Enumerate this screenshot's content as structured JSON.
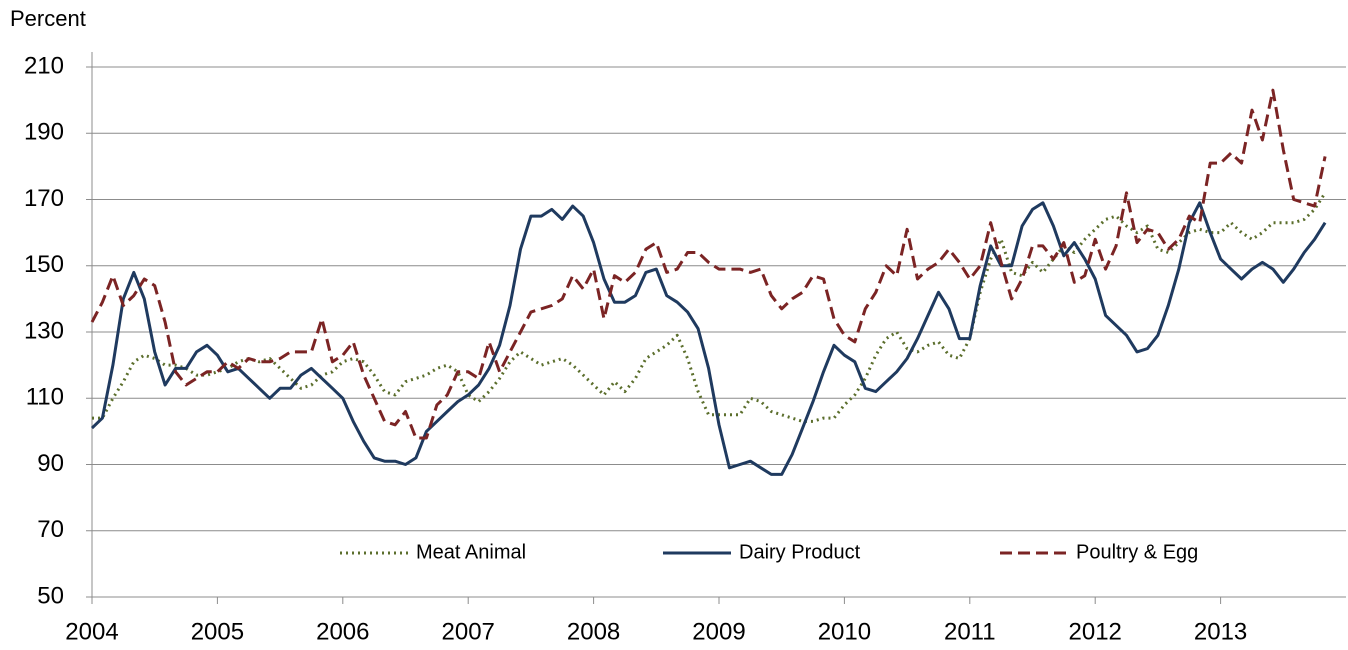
{
  "chart_data": {
    "type": "line",
    "y_label": "Percent",
    "x": [
      2004,
      2004.083,
      2004.167,
      2004.25,
      2004.333,
      2004.417,
      2004.5,
      2004.583,
      2004.667,
      2004.75,
      2004.833,
      2004.917,
      2005,
      2005.083,
      2005.167,
      2005.25,
      2005.333,
      2005.417,
      2005.5,
      2005.583,
      2005.667,
      2005.75,
      2005.833,
      2005.917,
      2006,
      2006.083,
      2006.167,
      2006.25,
      2006.333,
      2006.417,
      2006.5,
      2006.583,
      2006.667,
      2006.75,
      2006.833,
      2006.917,
      2007,
      2007.083,
      2007.167,
      2007.25,
      2007.333,
      2007.417,
      2007.5,
      2007.583,
      2007.667,
      2007.75,
      2007.833,
      2007.917,
      2008,
      2008.083,
      2008.167,
      2008.25,
      2008.333,
      2008.417,
      2008.5,
      2008.583,
      2008.667,
      2008.75,
      2008.833,
      2008.917,
      2009,
      2009.083,
      2009.167,
      2009.25,
      2009.333,
      2009.417,
      2009.5,
      2009.583,
      2009.667,
      2009.75,
      2009.833,
      2009.917,
      2010,
      2010.083,
      2010.167,
      2010.25,
      2010.333,
      2010.417,
      2010.5,
      2010.583,
      2010.667,
      2010.75,
      2010.833,
      2010.917,
      2011,
      2011.083,
      2011.167,
      2011.25,
      2011.333,
      2011.417,
      2011.5,
      2011.583,
      2011.667,
      2011.75,
      2011.833,
      2011.917,
      2012,
      2012.083,
      2012.167,
      2012.25,
      2012.333,
      2012.417,
      2012.5,
      2012.583,
      2012.667,
      2012.75,
      2012.833,
      2012.917,
      2013,
      2013.083,
      2013.167,
      2013.25,
      2013.333,
      2013.417,
      2013.5,
      2013.583,
      2013.667,
      2013.75,
      2013.833
    ],
    "series": [
      {
        "name": "Meat Animal",
        "color": "#5b6e2c",
        "style": "dotted",
        "values": [
          104,
          104,
          110,
          115,
          121,
          123,
          122,
          120,
          120,
          119,
          117,
          117,
          118,
          119,
          121,
          122,
          121,
          122,
          119,
          116,
          113,
          114,
          117,
          118,
          121,
          122,
          121,
          117,
          112,
          111,
          115,
          116,
          117,
          119,
          120,
          118,
          111,
          109,
          112,
          116,
          121,
          124,
          122,
          120,
          121,
          122,
          120,
          117,
          114,
          111,
          115,
          112,
          116,
          122,
          124,
          126,
          129,
          122,
          112,
          105,
          105,
          105,
          105,
          110,
          109,
          106,
          105,
          104,
          103,
          103,
          104,
          104,
          108,
          111,
          116,
          123,
          128,
          130,
          125,
          124,
          126,
          127,
          123,
          122,
          128,
          142,
          152,
          158,
          148,
          147,
          151,
          148,
          152,
          156,
          154,
          158,
          161,
          164,
          165,
          162,
          160,
          162,
          155,
          154,
          157,
          160,
          161,
          160,
          160,
          163,
          160,
          158,
          160,
          163,
          163,
          163,
          164,
          167,
          172
        ]
      },
      {
        "name": "Dairy Product",
        "color": "#1f3a5f",
        "style": "solid",
        "values": [
          101,
          104,
          120,
          140,
          148,
          140,
          124,
          114,
          119,
          119,
          124,
          126,
          123,
          118,
          119,
          116,
          113,
          110,
          113,
          113,
          117,
          119,
          116,
          113,
          110,
          103,
          97,
          92,
          91,
          91,
          90,
          92,
          100,
          103,
          106,
          109,
          111,
          114,
          119,
          126,
          138,
          155,
          165,
          165,
          167,
          164,
          168,
          165,
          157,
          146,
          139,
          139,
          141,
          148,
          149,
          141,
          139,
          136,
          131,
          119,
          102,
          89,
          90,
          91,
          89,
          87,
          87,
          93,
          101,
          109,
          118,
          126,
          123,
          121,
          113,
          112,
          115,
          118,
          122,
          128,
          135,
          142,
          137,
          128,
          128,
          144,
          156,
          150,
          150,
          162,
          167,
          169,
          162,
          153,
          157,
          152,
          146,
          135,
          132,
          129,
          124,
          125,
          129,
          138,
          149,
          163,
          169,
          160,
          152,
          149,
          146,
          149,
          151,
          149,
          145,
          149,
          154,
          158,
          163
        ]
      },
      {
        "name": "Poultry & Egg",
        "color": "#7b2424",
        "style": "dashed",
        "values": [
          133,
          139,
          147,
          138,
          141,
          146,
          144,
          133,
          118,
          114,
          116,
          118,
          118,
          121,
          119,
          122,
          121,
          121,
          122,
          124,
          124,
          124,
          134,
          121,
          123,
          127,
          117,
          110,
          103,
          102,
          106,
          98,
          98,
          108,
          111,
          118,
          118,
          116,
          127,
          118,
          124,
          130,
          136,
          137,
          138,
          140,
          147,
          143,
          149,
          134,
          147,
          145,
          148,
          155,
          157,
          148,
          149,
          154,
          154,
          151,
          149,
          149,
          149,
          148,
          149,
          141,
          137,
          140,
          142,
          147,
          146,
          134,
          129,
          127,
          137,
          142,
          150,
          147,
          161,
          146,
          149,
          151,
          155,
          151,
          146,
          150,
          163,
          151,
          140,
          146,
          156,
          156,
          152,
          157,
          145,
          147,
          158,
          149,
          156,
          172,
          157,
          161,
          160,
          155,
          158,
          165,
          163,
          181,
          181,
          184,
          181,
          197,
          188,
          203,
          185,
          170,
          169,
          168,
          183
        ]
      }
    ],
    "xlim": [
      2004,
      2014
    ],
    "xticks": [
      2004,
      2005,
      2006,
      2007,
      2008,
      2009,
      2010,
      2011,
      2012,
      2013
    ],
    "ylim": [
      50,
      210
    ],
    "yticks": [
      50,
      70,
      90,
      110,
      130,
      150,
      170,
      190,
      210
    ],
    "grid": true,
    "legend": "bottom"
  }
}
